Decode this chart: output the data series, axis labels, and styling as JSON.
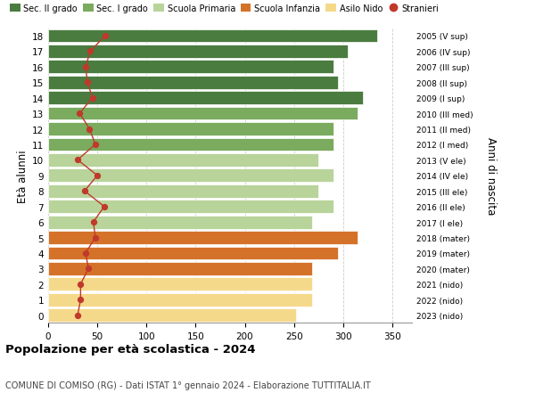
{
  "ages": [
    18,
    17,
    16,
    15,
    14,
    13,
    12,
    11,
    10,
    9,
    8,
    7,
    6,
    5,
    4,
    3,
    2,
    1,
    0
  ],
  "bar_values": [
    335,
    305,
    290,
    295,
    320,
    315,
    290,
    290,
    275,
    290,
    275,
    290,
    268,
    315,
    295,
    268,
    268,
    268,
    252
  ],
  "stranieri": [
    58,
    43,
    38,
    40,
    45,
    32,
    42,
    48,
    30,
    50,
    37,
    57,
    46,
    48,
    38,
    41,
    33,
    33,
    30
  ],
  "right_labels": [
    "2005 (V sup)",
    "2006 (IV sup)",
    "2007 (III sup)",
    "2008 (II sup)",
    "2009 (I sup)",
    "2010 (III med)",
    "2011 (II med)",
    "2012 (I med)",
    "2013 (V ele)",
    "2014 (IV ele)",
    "2015 (III ele)",
    "2016 (II ele)",
    "2017 (I ele)",
    "2018 (mater)",
    "2019 (mater)",
    "2020 (mater)",
    "2021 (nido)",
    "2022 (nido)",
    "2023 (nido)"
  ],
  "bar_colors": [
    "#4a7c3f",
    "#4a7c3f",
    "#4a7c3f",
    "#4a7c3f",
    "#4a7c3f",
    "#7aab5e",
    "#7aab5e",
    "#7aab5e",
    "#b8d49a",
    "#b8d49a",
    "#b8d49a",
    "#b8d49a",
    "#b8d49a",
    "#d4722a",
    "#d4722a",
    "#d4722a",
    "#f5d98b",
    "#f5d98b",
    "#f5d98b"
  ],
  "legend_labels": [
    "Sec. II grado",
    "Sec. I grado",
    "Scuola Primaria",
    "Scuola Infanzia",
    "Asilo Nido",
    "Stranieri"
  ],
  "legend_colors": [
    "#4a7c3f",
    "#7aab5e",
    "#b8d49a",
    "#d4722a",
    "#f5d98b",
    "#c0392b"
  ],
  "ylabel": "Età alunni",
  "ylabel_right": "Anni di nascita",
  "title": "Popolazione per età scolastica - 2024",
  "subtitle": "COMUNE DI COMISO (RG) - Dati ISTAT 1° gennaio 2024 - Elaborazione TUTTITALIA.IT",
  "xlim": [
    0,
    370
  ],
  "xticks": [
    0,
    50,
    100,
    150,
    200,
    250,
    300,
    350
  ],
  "stranieri_color": "#c0392b",
  "bar_height": 0.85,
  "bg_color": "#ffffff"
}
